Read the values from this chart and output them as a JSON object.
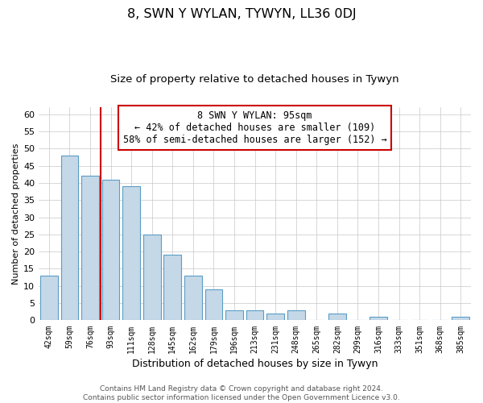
{
  "title": "8, SWN Y WYLAN, TYWYN, LL36 0DJ",
  "subtitle": "Size of property relative to detached houses in Tywyn",
  "xlabel": "Distribution of detached houses by size in Tywyn",
  "ylabel": "Number of detached properties",
  "bin_labels": [
    "42sqm",
    "59sqm",
    "76sqm",
    "93sqm",
    "111sqm",
    "128sqm",
    "145sqm",
    "162sqm",
    "179sqm",
    "196sqm",
    "213sqm",
    "231sqm",
    "248sqm",
    "265sqm",
    "282sqm",
    "299sqm",
    "316sqm",
    "333sqm",
    "351sqm",
    "368sqm",
    "385sqm"
  ],
  "bar_values": [
    13,
    48,
    42,
    41,
    39,
    25,
    19,
    13,
    9,
    3,
    3,
    2,
    3,
    0,
    2,
    0,
    1,
    0,
    0,
    0,
    1
  ],
  "bar_color": "#c5d8e8",
  "bar_edgecolor": "#5a9dc5",
  "vline_color": "#cc0000",
  "vline_x": 2.5,
  "ylim": [
    0,
    62
  ],
  "yticks": [
    0,
    5,
    10,
    15,
    20,
    25,
    30,
    35,
    40,
    45,
    50,
    55,
    60
  ],
  "annotation_title": "8 SWN Y WYLAN: 95sqm",
  "annotation_line1": "← 42% of detached houses are smaller (109)",
  "annotation_line2": "58% of semi-detached houses are larger (152) →",
  "annotation_box_facecolor": "#ffffff",
  "annotation_box_edgecolor": "#cc0000",
  "footer_line1": "Contains HM Land Registry data © Crown copyright and database right 2024.",
  "footer_line2": "Contains public sector information licensed under the Open Government Licence v3.0.",
  "background_color": "#ffffff",
  "grid_color": "#c8c8c8"
}
